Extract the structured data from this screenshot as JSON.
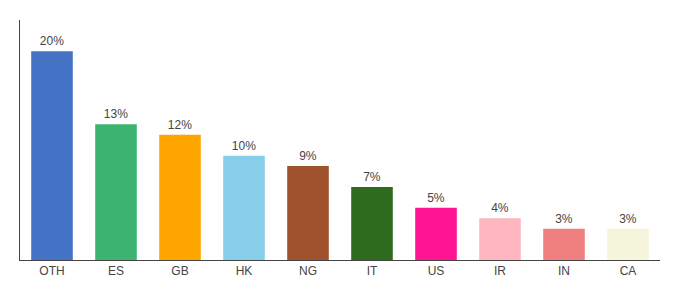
{
  "chart_data": {
    "type": "bar",
    "categories": [
      "OTH",
      "ES",
      "GB",
      "HK",
      "NG",
      "IT",
      "US",
      "IR",
      "IN",
      "CA"
    ],
    "values": [
      20,
      13,
      12,
      10,
      9,
      7,
      5,
      4,
      3,
      3
    ],
    "value_labels": [
      "20%",
      "13%",
      "12%",
      "10%",
      "9%",
      "7%",
      "5%",
      "4%",
      "3%",
      "3%"
    ],
    "colors": [
      "#4472C4",
      "#3CB371",
      "#FFA500",
      "#87CEEB",
      "#A0522D",
      "#2E6B1E",
      "#FF1493",
      "#FFB6C1",
      "#F08080",
      "#F5F5DC"
    ],
    "ylim": [
      0,
      23
    ],
    "grid": false,
    "data_labels": true,
    "tick_labels": "x"
  }
}
